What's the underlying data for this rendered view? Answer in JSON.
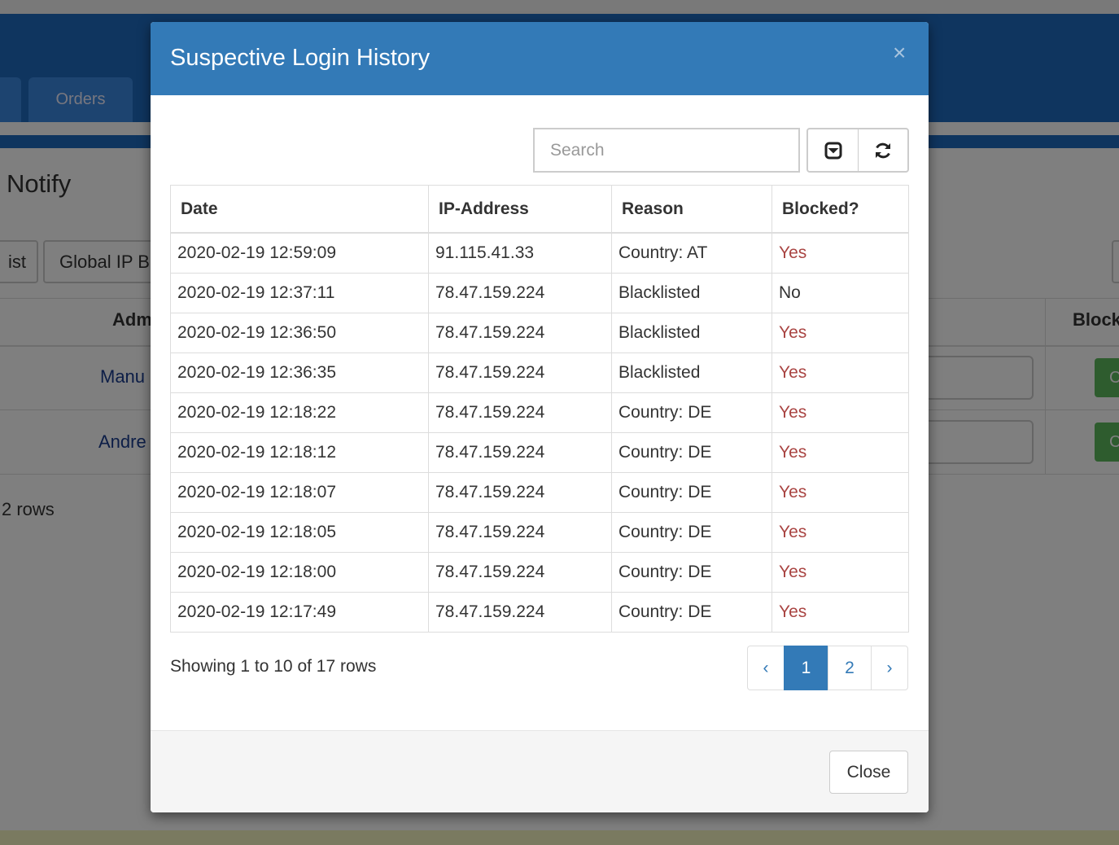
{
  "background": {
    "nav_tab": "Orders",
    "heading": "Notify",
    "buttons": [
      "ist",
      "Global IP B"
    ],
    "table": {
      "headers": [
        "Adm",
        "Block"
      ],
      "rows": [
        [
          "Manu",
          "C"
        ],
        [
          "Andre",
          "C"
        ]
      ]
    },
    "footer": "2 rows"
  },
  "modal": {
    "title": "Suspective Login History",
    "close_icon": "×",
    "search_placeholder": "Search",
    "table": {
      "headers": [
        "Date",
        "IP-Address",
        "Reason",
        "Blocked?"
      ],
      "rows": [
        [
          "2020-02-19 12:59:09",
          "91.115.41.33",
          "Country: AT",
          "Yes"
        ],
        [
          "2020-02-19 12:37:11",
          "78.47.159.224",
          "Blacklisted",
          "No"
        ],
        [
          "2020-02-19 12:36:50",
          "78.47.159.224",
          "Blacklisted",
          "Yes"
        ],
        [
          "2020-02-19 12:36:35",
          "78.47.159.224",
          "Blacklisted",
          "Yes"
        ],
        [
          "2020-02-19 12:18:22",
          "78.47.159.224",
          "Country: DE",
          "Yes"
        ],
        [
          "2020-02-19 12:18:12",
          "78.47.159.224",
          "Country: DE",
          "Yes"
        ],
        [
          "2020-02-19 12:18:07",
          "78.47.159.224",
          "Country: DE",
          "Yes"
        ],
        [
          "2020-02-19 12:18:05",
          "78.47.159.224",
          "Country: DE",
          "Yes"
        ],
        [
          "2020-02-19 12:18:00",
          "78.47.159.224",
          "Country: DE",
          "Yes"
        ],
        [
          "2020-02-19 12:17:49",
          "78.47.159.224",
          "Country: DE",
          "Yes"
        ]
      ]
    },
    "summary": "Showing 1 to 10 of 17 rows",
    "pagination": [
      "‹",
      "1",
      "2",
      "›"
    ],
    "close_button": "Close"
  }
}
